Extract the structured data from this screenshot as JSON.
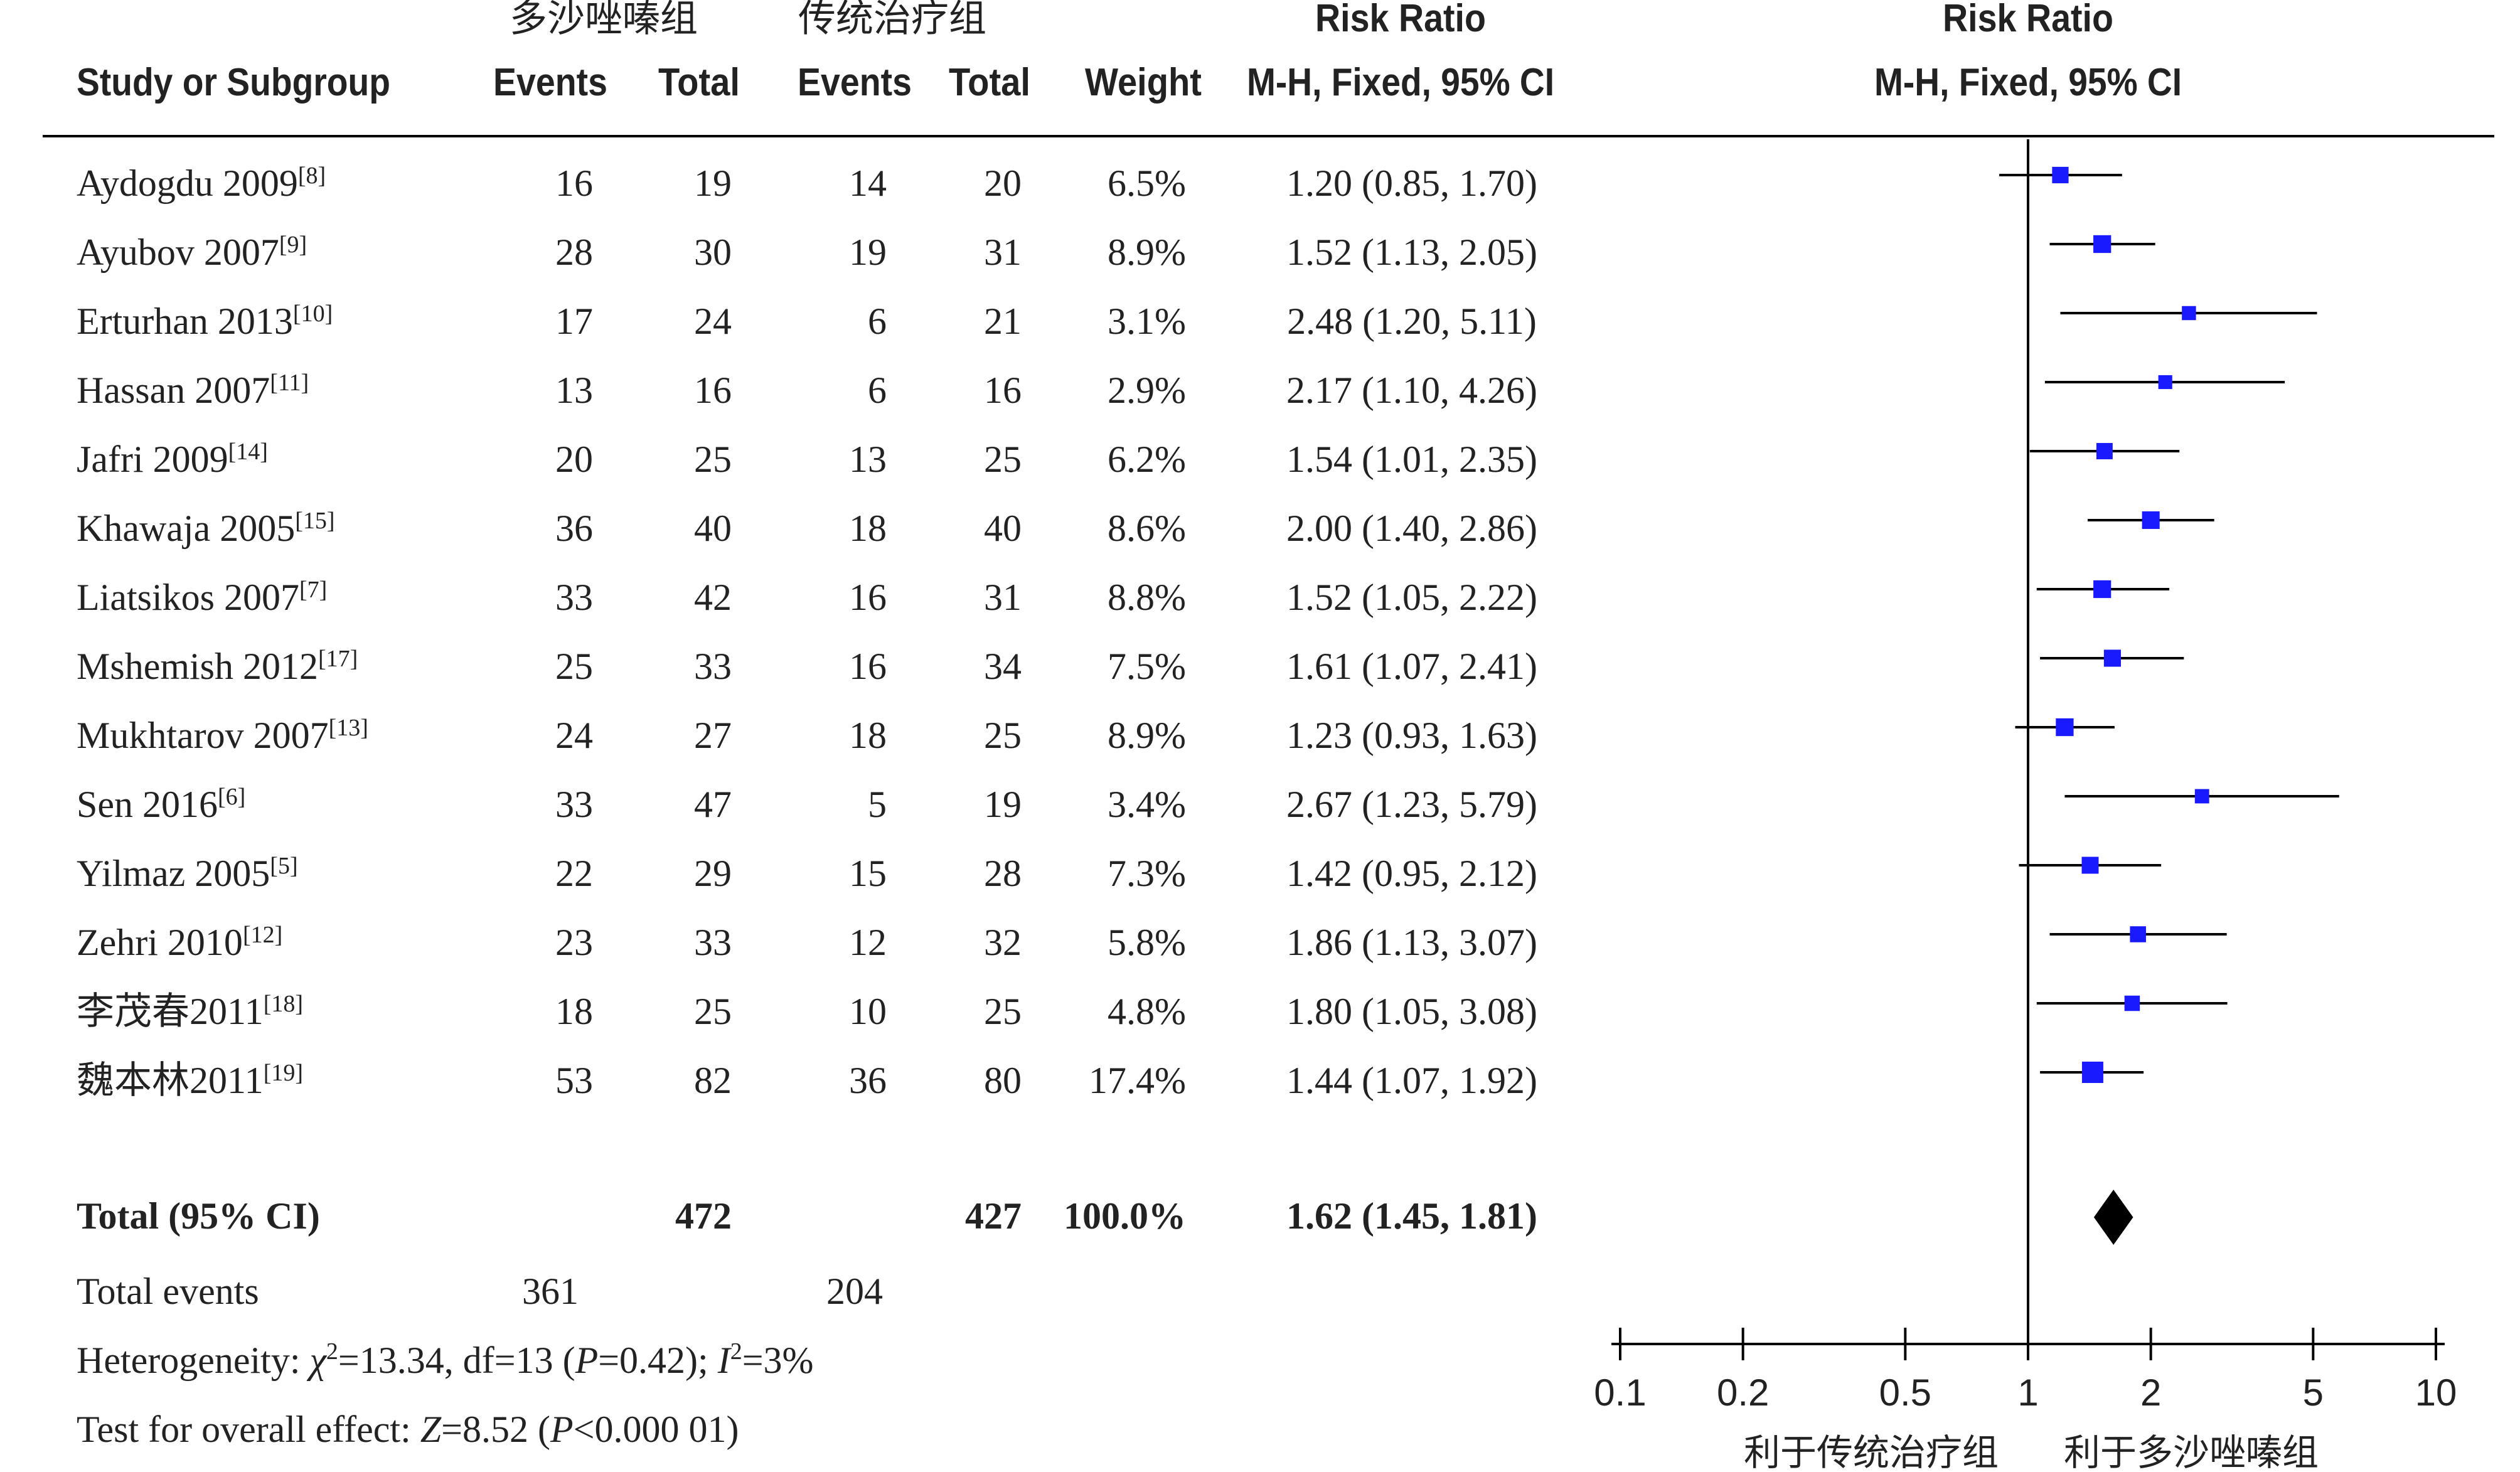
{
  "headers": {
    "study": "Study or Subgroup",
    "group_exp": "多沙唑嗪组",
    "group_ctrl": "传统治疗组",
    "events": "Events",
    "total": "Total",
    "weight": "Weight",
    "rr_title": "Risk Ratio",
    "rr_method": "M-H, Fixed, 95% CI",
    "plot_title": "Risk Ratio",
    "plot_method": "M-H, Fixed, 95% CI"
  },
  "studies": [
    {
      "name": "Aydogdu 2009",
      "ref": "[8]",
      "e1": "16",
      "t1": "19",
      "e2": "14",
      "t2": "20",
      "weight": "6.5%",
      "ci_text": "1.20 (0.85, 1.70)"
    },
    {
      "name": "Ayubov 2007",
      "ref": "[9]",
      "e1": "28",
      "t1": "30",
      "e2": "19",
      "t2": "31",
      "weight": "8.9%",
      "ci_text": "1.52 (1.13, 2.05)"
    },
    {
      "name": "Erturhan 2013",
      "ref": "[10]",
      "e1": "17",
      "t1": "24",
      "e2": "6",
      "t2": "21",
      "weight": "3.1%",
      "ci_text": "2.48 (1.20, 5.11)"
    },
    {
      "name": "Hassan 2007",
      "ref": "[11]",
      "e1": "13",
      "t1": "16",
      "e2": "6",
      "t2": "16",
      "weight": "2.9%",
      "ci_text": "2.17 (1.10, 4.26)"
    },
    {
      "name": "Jafri 2009",
      "ref": "[14]",
      "e1": "20",
      "t1": "25",
      "e2": "13",
      "t2": "25",
      "weight": "6.2%",
      "ci_text": "1.54 (1.01, 2.35)"
    },
    {
      "name": "Khawaja 2005",
      "ref": "[15]",
      "e1": "36",
      "t1": "40",
      "e2": "18",
      "t2": "40",
      "weight": "8.6%",
      "ci_text": "2.00 (1.40, 2.86)"
    },
    {
      "name": "Liatsikos 2007",
      "ref": "[7]",
      "e1": "33",
      "t1": "42",
      "e2": "16",
      "t2": "31",
      "weight": "8.8%",
      "ci_text": "1.52 (1.05, 2.22)"
    },
    {
      "name": "Mshemish 2012",
      "ref": "[17]",
      "e1": "25",
      "t1": "33",
      "e2": "16",
      "t2": "34",
      "weight": "7.5%",
      "ci_text": "1.61 (1.07, 2.41)"
    },
    {
      "name": "Mukhtarov 2007",
      "ref": "[13]",
      "e1": "24",
      "t1": "27",
      "e2": "18",
      "t2": "25",
      "weight": "8.9%",
      "ci_text": "1.23 (0.93, 1.63)"
    },
    {
      "name": "Sen 2016",
      "ref": "[6]",
      "e1": "33",
      "t1": "47",
      "e2": "5",
      "t2": "19",
      "weight": "3.4%",
      "ci_text": "2.67 (1.23, 5.79)"
    },
    {
      "name": "Yilmaz 2005",
      "ref": "[5]",
      "e1": "22",
      "t1": "29",
      "e2": "15",
      "t2": "28",
      "weight": "7.3%",
      "ci_text": "1.42 (0.95, 2.12)"
    },
    {
      "name": "Zehri 2010",
      "ref": "[12]",
      "e1": "23",
      "t1": "33",
      "e2": "12",
      "t2": "32",
      "weight": "5.8%",
      "ci_text": "1.86 (1.13, 3.07)"
    },
    {
      "name": "李茂春2011",
      "ref": "[18]",
      "e1": "18",
      "t1": "25",
      "e2": "10",
      "t2": "25",
      "weight": "4.8%",
      "ci_text": "1.80 (1.05, 3.08)"
    },
    {
      "name": "魏本林2011",
      "ref": "[19]",
      "e1": "53",
      "t1": "82",
      "e2": "36",
      "t2": "80",
      "weight": "17.4%",
      "ci_text": "1.44 (1.07, 1.92)"
    }
  ],
  "total": {
    "label": "Total (95% CI)",
    "t1": "472",
    "t2": "427",
    "weight": "100.0%",
    "ci_text": "1.62 (1.45, 1.81)"
  },
  "total_events": {
    "label": "Total events",
    "e1": "361",
    "e2": "204"
  },
  "heterogeneity": {
    "prefix": "Heterogeneity: ",
    "chi_sym": "χ",
    "chi_rest": "=13.34, df=13 (",
    "p_sym": "P",
    "p_rest": "=0.42); ",
    "i_sym": "I",
    "i_rest": "=3%"
  },
  "overall": {
    "prefix": "Test for overall effect: ",
    "z_sym": "Z",
    "z_rest": "=8.52 (",
    "p_sym": "P",
    "p_rest": "<0.000 01)"
  },
  "axis": {
    "ticks": [
      "0.1",
      "0.2",
      "0.5",
      "1",
      "2",
      "5",
      "10"
    ],
    "favours_left": "利于传统治疗组",
    "favours_right": "利于多沙唑嗪组"
  },
  "colors": {
    "point": "#1a1aff",
    "line": "#000000",
    "text": "#222222"
  },
  "chart_data": {
    "type": "forest",
    "measure": "Risk Ratio",
    "scale": "log",
    "xlim": [
      0.1,
      10
    ],
    "null_line": 1,
    "studies": [
      {
        "name": "Aydogdu 2009",
        "rr": 1.2,
        "lo": 0.85,
        "hi": 1.7,
        "weight": 6.5
      },
      {
        "name": "Ayubov 2007",
        "rr": 1.52,
        "lo": 1.13,
        "hi": 2.05,
        "weight": 8.9
      },
      {
        "name": "Erturhan 2013",
        "rr": 2.48,
        "lo": 1.2,
        "hi": 5.11,
        "weight": 3.1
      },
      {
        "name": "Hassan 2007",
        "rr": 2.17,
        "lo": 1.1,
        "hi": 4.26,
        "weight": 2.9
      },
      {
        "name": "Jafri 2009",
        "rr": 1.54,
        "lo": 1.01,
        "hi": 2.35,
        "weight": 6.2
      },
      {
        "name": "Khawaja 2005",
        "rr": 2.0,
        "lo": 1.4,
        "hi": 2.86,
        "weight": 8.6
      },
      {
        "name": "Liatsikos 2007",
        "rr": 1.52,
        "lo": 1.05,
        "hi": 2.22,
        "weight": 8.8
      },
      {
        "name": "Mshemish 2012",
        "rr": 1.61,
        "lo": 1.07,
        "hi": 2.41,
        "weight": 7.5
      },
      {
        "name": "Mukhtarov 2007",
        "rr": 1.23,
        "lo": 0.93,
        "hi": 1.63,
        "weight": 8.9
      },
      {
        "name": "Sen 2016",
        "rr": 2.67,
        "lo": 1.23,
        "hi": 5.79,
        "weight": 3.4
      },
      {
        "name": "Yilmaz 2005",
        "rr": 1.42,
        "lo": 0.95,
        "hi": 2.12,
        "weight": 7.3
      },
      {
        "name": "Zehri 2010",
        "rr": 1.86,
        "lo": 1.13,
        "hi": 3.07,
        "weight": 5.8
      },
      {
        "name": "李茂春2011",
        "rr": 1.8,
        "lo": 1.05,
        "hi": 3.08,
        "weight": 4.8
      },
      {
        "name": "魏本林2011",
        "rr": 1.44,
        "lo": 1.07,
        "hi": 1.92,
        "weight": 17.4
      }
    ],
    "pooled": {
      "rr": 1.62,
      "lo": 1.45,
      "hi": 1.81,
      "weight": 100.0
    }
  }
}
